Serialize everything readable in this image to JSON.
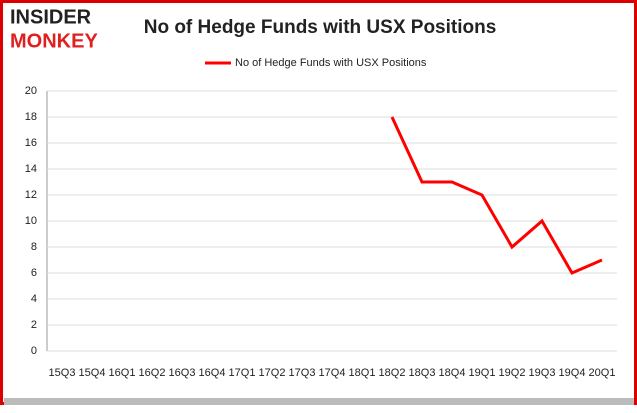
{
  "logo": {
    "line1": "INSIDER",
    "line2": "MONKEY"
  },
  "chart_data": {
    "type": "line",
    "title": "No of Hedge Funds with USX Positions",
    "categories": [
      "15Q3",
      "15Q4",
      "16Q1",
      "16Q2",
      "16Q3",
      "16Q4",
      "17Q1",
      "17Q2",
      "17Q3",
      "17Q4",
      "18Q1",
      "18Q2",
      "18Q3",
      "18Q4",
      "19Q1",
      "19Q2",
      "19Q3",
      "19Q4",
      "20Q1"
    ],
    "series": [
      {
        "name": "No of Hedge Funds with USX Positions",
        "color": "#ff0000",
        "values": [
          null,
          null,
          null,
          null,
          null,
          null,
          null,
          null,
          null,
          null,
          null,
          18,
          13,
          13,
          12,
          8,
          10,
          6,
          7
        ]
      }
    ],
    "ylim": [
      0,
      20
    ],
    "yticks": [
      0,
      2,
      4,
      6,
      8,
      10,
      12,
      14,
      16,
      18,
      20
    ],
    "grid": true,
    "legend": "top"
  }
}
